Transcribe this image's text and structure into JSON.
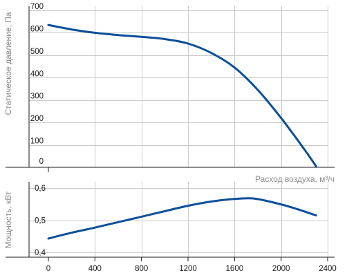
{
  "chart_data": [
    {
      "type": "line",
      "ylabel": "Статическое давление, Па",
      "xlabel": "Расход воздуха, м³/ч",
      "xlim": [
        0,
        2400
      ],
      "ylim": [
        0,
        700
      ],
      "y_ticks": [
        "0",
        "100",
        "200",
        "300",
        "400",
        "500",
        "600",
        "700"
      ],
      "x_grid": [
        0,
        400,
        800,
        1200,
        1600,
        2000,
        2400
      ],
      "grid": true,
      "color": "#0b4e9a",
      "series": [
        {
          "x": [
            0,
            200,
            400,
            600,
            800,
            1000,
            1200,
            1400,
            1600,
            1800,
            2000,
            2200,
            2300
          ],
          "y": [
            635,
            615,
            600,
            590,
            582,
            572,
            552,
            510,
            445,
            345,
            220,
            80,
            5
          ]
        }
      ]
    },
    {
      "type": "line",
      "ylabel": "Мощность, кВт",
      "xlim": [
        0,
        2400
      ],
      "ylim": [
        0.4,
        0.6
      ],
      "y_ticks": [
        "0,4",
        "0,5",
        "0,6"
      ],
      "x_ticks": [
        "0",
        "400",
        "800",
        "1200",
        "1600",
        "2000",
        "2400"
      ],
      "x_ticks_values": [
        0,
        400,
        800,
        1200,
        1600,
        2000,
        2400
      ],
      "grid": true,
      "color": "#0b4e9a",
      "series": [
        {
          "x": [
            0,
            200,
            400,
            600,
            800,
            1000,
            1200,
            1400,
            1600,
            1750,
            1900,
            2100,
            2300
          ],
          "y": [
            0.443,
            0.461,
            0.477,
            0.494,
            0.511,
            0.528,
            0.545,
            0.558,
            0.566,
            0.568,
            0.558,
            0.539,
            0.515
          ]
        }
      ]
    }
  ]
}
